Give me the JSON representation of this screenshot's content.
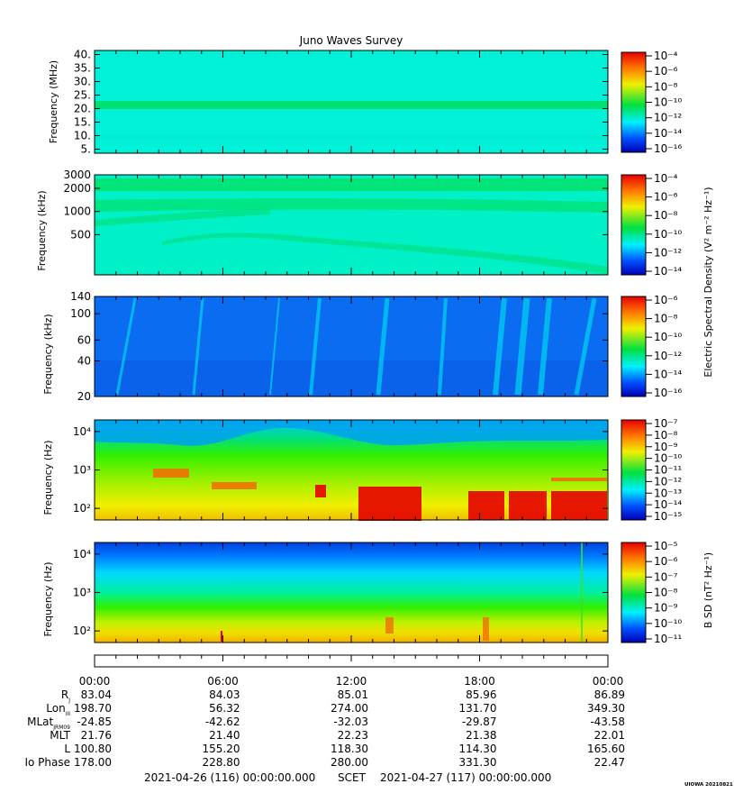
{
  "title": "Juno Waves Survey",
  "credit": "UIOWA 20210821",
  "colors": {
    "lowest": "#0000b4",
    "low": "#0050ff",
    "mid_low": "#00f0ff",
    "mid": "#00e040",
    "mid_high": "#f0f000",
    "high": "#ff7800",
    "highest": "#e60000"
  },
  "chart_data": [
    {
      "type": "heatmap",
      "panel": "HFR high band",
      "ylabel": "Frequency (MHz)",
      "yscale": "linear",
      "ylim": [
        3.5,
        41.5
      ],
      "y_ticks": [
        "5.",
        "10.",
        "15.",
        "20.",
        "25.",
        "30.",
        "35.",
        "40."
      ],
      "colorbar_ticks": [
        "10⁻⁴",
        "10⁻⁶",
        "10⁻⁸",
        "10⁻¹⁰",
        "10⁻¹²",
        "10⁻¹⁴",
        "10⁻¹⁶"
      ]
    },
    {
      "type": "heatmap",
      "panel": "HFR low band",
      "ylabel": "Frequency (kHz)",
      "yscale": "log",
      "ylim": [
        150,
        3000
      ],
      "y_ticks": [
        "3000",
        "2000",
        "1000",
        "500"
      ],
      "colorbar_ticks": [
        "10⁻⁴",
        "10⁻⁶",
        "10⁻⁸",
        "10⁻¹⁰",
        "10⁻¹²",
        "10⁻¹⁴"
      ]
    },
    {
      "type": "heatmap",
      "panel": "LFR high",
      "ylabel": "Frequency (kHz)",
      "yscale": "log",
      "ylim": [
        20,
        140
      ],
      "y_ticks": [
        "140",
        "100",
        "60",
        "40",
        "20"
      ],
      "colorbar_ticks": [
        "10⁻⁶",
        "10⁻⁸",
        "10⁻¹⁰",
        "10⁻¹²",
        "10⁻¹⁴",
        "10⁻¹⁶"
      ]
    },
    {
      "type": "heatmap",
      "panel": "LFR low electric",
      "ylabel": "Frequency (Hz)",
      "yscale": "log",
      "ylim": [
        50,
        20000
      ],
      "y_ticks": [
        "10⁴",
        "10³",
        "10²"
      ],
      "colorbar_ticks": [
        "10⁻⁷",
        "10⁻⁸",
        "10⁻⁹",
        "10⁻¹⁰",
        "10⁻¹¹",
        "10⁻¹²",
        "10⁻¹³",
        "10⁻¹⁴",
        "10⁻¹⁵"
      ]
    },
    {
      "type": "heatmap",
      "panel": "LFR low magnetic",
      "ylabel": "Frequency (Hz)",
      "yscale": "log",
      "ylim": [
        50,
        20000
      ],
      "y_ticks": [
        "10⁴",
        "10³",
        "10²"
      ],
      "colorbar_ticks": [
        "10⁻⁵",
        "10⁻⁶",
        "10⁻⁷",
        "10⁻⁸",
        "10⁻⁹",
        "10⁻¹⁰",
        "10⁻¹¹"
      ]
    }
  ],
  "shared_colorbar_label": "Electric Spectral Density (V² m⁻² Hz⁻¹)",
  "magnetic_colorbar_label": "B SD (nT² Hz⁻¹)",
  "time_axis": {
    "ticks": [
      "00:00",
      "06:00",
      "12:00",
      "18:00",
      "00:00"
    ]
  },
  "ephemeris": {
    "rows": [
      {
        "label": "R",
        "sub": "J",
        "values": [
          "83.04",
          "84.03",
          "85.01",
          "85.96",
          "86.89"
        ]
      },
      {
        "label": "Lon",
        "sub": "III",
        "values": [
          "198.70",
          "56.32",
          "274.00",
          "131.70",
          "349.30"
        ]
      },
      {
        "label": "MLat",
        "sub": "JRM09",
        "values": [
          "-24.85",
          "-42.62",
          "-32.03",
          "-29.87",
          "-43.58"
        ]
      },
      {
        "label": "MLT",
        "sub": "",
        "values": [
          "21.76",
          "21.40",
          "22.23",
          "21.38",
          "22.01"
        ]
      },
      {
        "label": "L",
        "sub": "",
        "values": [
          "100.80",
          "155.20",
          "118.30",
          "114.30",
          "165.60"
        ]
      },
      {
        "label": "Io Phase",
        "sub": "",
        "values": [
          "178.00",
          "228.80",
          "280.00",
          "331.30",
          "22.47"
        ]
      }
    ]
  },
  "footer": {
    "start": "2021-04-26 (116) 00:00:00.000",
    "scet": "SCET",
    "end": "2021-04-27 (117) 00:00:00.000"
  }
}
